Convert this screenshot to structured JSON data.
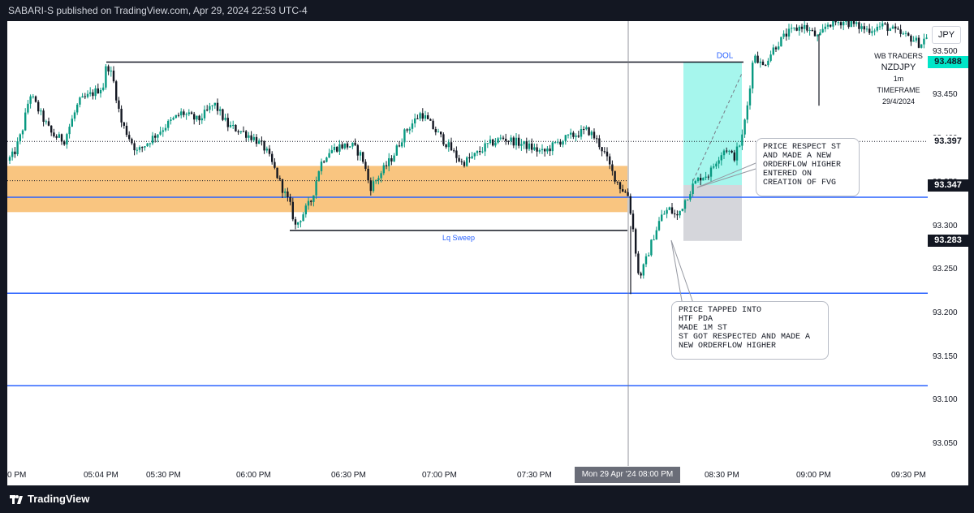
{
  "header": {
    "publisher": "SABARI-S published on TradingView.com, Apr 29, 2024 22:53 UTC-4"
  },
  "footer": {
    "brand": "TradingView"
  },
  "currency_button": "JPY",
  "watermark": {
    "line1": "WB TRADERS",
    "line2": "NZDJPY",
    "line3": "1m TIMEFRAME",
    "line4": "29/4/2024"
  },
  "annotations": {
    "dol": "DOL",
    "lq_sweep": "Lq Sweep",
    "note_top": "PRICE RESPECT ST\nAND MADE A NEW\nORDERFLOW HIGHER\nENTERED ON\nCREATION OF FVG",
    "note_bottom": "PRICE TAPPED INTO\nHTF PDA\nMADE 1M ST\nST GOT RESPECTED AND MADE A\nNEW ORDERFLOW HIGHER"
  },
  "price_labels": [
    {
      "text": "93.488",
      "bg": "#00e6c8",
      "fg": "#131722"
    },
    {
      "text": "93.397",
      "bg": "#ffffff",
      "fg": "#131722"
    },
    {
      "text": "93.347",
      "bg": "#131722",
      "fg": "#ffffff"
    },
    {
      "text": "93.283",
      "bg": "#131722",
      "fg": "#ffffff"
    }
  ],
  "crosshair_time": "Mon 29 Apr '24  08:00 PM",
  "colors": {
    "up": "#089981",
    "down": "#131722",
    "zone": "#f7b155",
    "level": "#2962ff",
    "target": "#00e5cc",
    "stop": "#b2b5be"
  },
  "chart_data": {
    "type": "candlestick",
    "symbol": "NZDJPY",
    "timeframe": "1m",
    "y_ticks": [
      "93.500",
      "93.450",
      "93.400",
      "93.350",
      "93.300",
      "93.250",
      "93.200",
      "93.150",
      "93.100",
      "93.050"
    ],
    "ylim": [
      93.025,
      93.535
    ],
    "x_ticks": [
      "0 PM",
      "05:04 PM",
      "05:30 PM",
      "06:00 PM",
      "06:30 PM",
      "07:00 PM",
      "07:30 PM",
      "08:00 PM",
      "08:30 PM",
      "09:00 PM",
      "09:30 PM"
    ],
    "levels": [
      {
        "name": "dotted",
        "price": 93.397
      },
      {
        "name": "blue-1",
        "price": 93.333
      },
      {
        "name": "blue-2",
        "price": 93.223
      },
      {
        "name": "blue-3",
        "price": 93.117
      },
      {
        "name": "zone-top",
        "price": 93.369
      },
      {
        "name": "zone-bottom",
        "price": 93.316
      },
      {
        "name": "dol-line",
        "price": 93.488
      },
      {
        "name": "lq-sweep-line",
        "price": 93.295
      }
    ],
    "position": {
      "entry": 93.347,
      "target": 93.488,
      "stop": 93.283
    },
    "anchors": [
      {
        "t": 0,
        "p": 93.375
      },
      {
        "t": 8,
        "p": 93.382
      },
      {
        "t": 18,
        "p": 93.408
      },
      {
        "t": 28,
        "p": 93.452
      },
      {
        "t": 40,
        "p": 93.43
      },
      {
        "t": 55,
        "p": 93.405
      },
      {
        "t": 70,
        "p": 93.398
      },
      {
        "t": 88,
        "p": 93.442
      },
      {
        "t": 110,
        "p": 93.455
      },
      {
        "t": 120,
        "p": 93.462
      },
      {
        "t": 122,
        "p": 93.488
      },
      {
        "t": 130,
        "p": 93.47
      },
      {
        "t": 140,
        "p": 93.42
      },
      {
        "t": 150,
        "p": 93.402
      },
      {
        "t": 160,
        "p": 93.385
      },
      {
        "t": 175,
        "p": 93.398
      },
      {
        "t": 195,
        "p": 93.415
      },
      {
        "t": 215,
        "p": 93.43
      },
      {
        "t": 235,
        "p": 93.421
      },
      {
        "t": 255,
        "p": 93.44
      },
      {
        "t": 272,
        "p": 93.415
      },
      {
        "t": 290,
        "p": 93.408
      },
      {
        "t": 305,
        "p": 93.4
      },
      {
        "t": 318,
        "p": 93.388
      },
      {
        "t": 328,
        "p": 93.368
      },
      {
        "t": 338,
        "p": 93.345
      },
      {
        "t": 348,
        "p": 93.325
      },
      {
        "t": 355,
        "p": 93.3
      },
      {
        "t": 365,
        "p": 93.315
      },
      {
        "t": 375,
        "p": 93.33
      },
      {
        "t": 385,
        "p": 93.37
      },
      {
        "t": 395,
        "p": 93.385
      },
      {
        "t": 410,
        "p": 93.392
      },
      {
        "t": 425,
        "p": 93.392
      },
      {
        "t": 437,
        "p": 93.38
      },
      {
        "t": 447,
        "p": 93.344
      },
      {
        "t": 460,
        "p": 93.36
      },
      {
        "t": 475,
        "p": 93.38
      },
      {
        "t": 490,
        "p": 93.408
      },
      {
        "t": 510,
        "p": 93.43
      },
      {
        "t": 525,
        "p": 93.412
      },
      {
        "t": 545,
        "p": 93.39
      },
      {
        "t": 560,
        "p": 93.372
      },
      {
        "t": 575,
        "p": 93.38
      },
      {
        "t": 590,
        "p": 93.392
      },
      {
        "t": 610,
        "p": 93.401
      },
      {
        "t": 625,
        "p": 93.397
      },
      {
        "t": 640,
        "p": 93.392
      },
      {
        "t": 660,
        "p": 93.384
      },
      {
        "t": 680,
        "p": 93.397
      },
      {
        "t": 700,
        "p": 93.405
      },
      {
        "t": 715,
        "p": 93.41
      },
      {
        "t": 725,
        "p": 93.4
      },
      {
        "t": 735,
        "p": 93.385
      },
      {
        "t": 745,
        "p": 93.362
      },
      {
        "t": 755,
        "p": 93.345
      },
      {
        "t": 765,
        "p": 93.335
      },
      {
        "t": 772,
        "p": 93.29
      },
      {
        "t": 778,
        "p": 93.24
      },
      {
        "t": 785,
        "p": 93.255
      },
      {
        "t": 795,
        "p": 93.285
      },
      {
        "t": 805,
        "p": 93.31
      },
      {
        "t": 815,
        "p": 93.32
      },
      {
        "t": 825,
        "p": 93.31
      },
      {
        "t": 835,
        "p": 93.33
      },
      {
        "t": 845,
        "p": 93.347
      },
      {
        "t": 855,
        "p": 93.357
      },
      {
        "t": 865,
        "p": 93.36
      },
      {
        "t": 875,
        "p": 93.378
      },
      {
        "t": 885,
        "p": 93.39
      },
      {
        "t": 895,
        "p": 93.378
      },
      {
        "t": 905,
        "p": 93.4
      },
      {
        "t": 912,
        "p": 93.44
      },
      {
        "t": 920,
        "p": 93.5
      },
      {
        "t": 930,
        "p": 93.482
      },
      {
        "t": 945,
        "p": 93.505
      },
      {
        "t": 960,
        "p": 93.52
      },
      {
        "t": 980,
        "p": 93.53
      },
      {
        "t": 1000,
        "p": 93.515
      },
      {
        "t": 1010,
        "p": 93.532
      },
      {
        "t": 1030,
        "p": 93.535
      },
      {
        "t": 1060,
        "p": 93.525
      },
      {
        "t": 1080,
        "p": 93.53
      },
      {
        "t": 1100,
        "p": 93.52
      },
      {
        "t": 1115,
        "p": 93.515
      },
      {
        "t": 1125,
        "p": 93.508
      },
      {
        "t": 1134,
        "p": 93.52
      }
    ]
  }
}
